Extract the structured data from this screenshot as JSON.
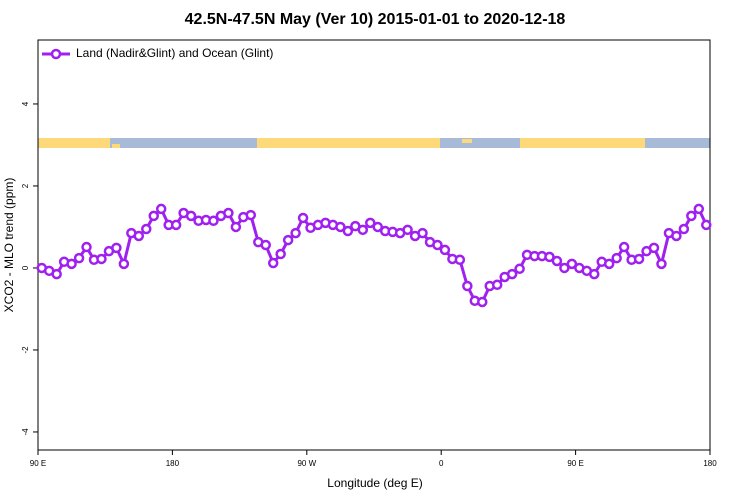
{
  "chart_data": {
    "type": "line",
    "title": "42.5N-47.5N May (Ver 10)   2015-01-01 to 2020-12-18",
    "x_label": "Longitude (deg E)",
    "y_label": "XCO2 - MLO trend (ppm)",
    "xlim": [
      90,
      540
    ],
    "ylim": [
      -4.44,
      5.56
    ],
    "xticks": [
      {
        "value": 90,
        "label": "90 E"
      },
      {
        "value": 180,
        "label": "180"
      },
      {
        "value": 270,
        "label": "90 W"
      },
      {
        "value": 360,
        "label": "0"
      },
      {
        "value": 450,
        "label": "90 E"
      },
      {
        "value": 540,
        "label": "180"
      }
    ],
    "yticks": [
      -4,
      -2,
      0,
      2,
      4
    ],
    "legend": "top-left",
    "x": [
      92.5,
      97.5,
      102.5,
      107.5,
      112.5,
      117.5,
      122.5,
      127.5,
      132.5,
      137.5,
      142.5,
      147.5,
      152.5,
      157.5,
      162.5,
      167.5,
      172.5,
      177.5,
      182.5,
      187.5,
      192.5,
      197.5,
      202.5,
      207.5,
      212.5,
      217.5,
      222.5,
      227.5,
      232.5,
      237.5,
      242.5,
      247.5,
      252.5,
      257.5,
      262.5,
      267.5,
      272.5,
      277.5,
      282.5,
      287.5,
      292.5,
      297.5,
      302.5,
      307.5,
      312.5,
      317.5,
      322.5,
      327.5,
      332.5,
      337.5,
      342.5,
      347.5,
      352.5,
      357.5,
      362.5,
      367.5,
      372.5,
      377.5,
      382.5,
      387.5,
      392.5,
      397.5,
      402.5,
      407.5,
      412.5,
      417.5,
      422.5,
      427.5,
      432.5,
      437.5,
      442.5,
      447.5,
      452.5,
      457.5,
      462.5,
      467.5,
      472.5,
      477.5,
      482.5,
      487.5,
      492.5,
      497.5,
      502.5,
      507.5,
      512.5,
      517.5,
      522.5,
      527.5,
      532.5,
      537.5
    ],
    "series": [
      {
        "name": "Land (Nadir&Glint) and Ocean (Glint)",
        "color": "#a020f0",
        "values": [
          0,
          -0.07,
          -0.15,
          0.15,
          0.1,
          0.24,
          0.51,
          0.2,
          0.22,
          0.41,
          0.49,
          0.1,
          0.85,
          0.78,
          0.95,
          1.27,
          1.44,
          1.05,
          1.05,
          1.34,
          1.27,
          1.15,
          1.17,
          1.15,
          1.27,
          1.34,
          1.0,
          1.24,
          1.29,
          0.63,
          0.56,
          0.12,
          0.34,
          0.68,
          0.85,
          1.22,
          0.98,
          1.05,
          1.1,
          1.05,
          1.0,
          0.9,
          1.02,
          0.93,
          1.1,
          1.0,
          0.9,
          0.88,
          0.85,
          0.93,
          0.78,
          0.85,
          0.63,
          0.56,
          0.44,
          0.22,
          0.2,
          -0.44,
          -0.8,
          -0.83,
          -0.44,
          -0.41,
          -0.22,
          -0.15,
          -0.02,
          0.32,
          0.29,
          0.29,
          0.27,
          0.17,
          0,
          0.1,
          0,
          -0.07,
          -0.15,
          0.15,
          0.1,
          0.24,
          0.51,
          0.2,
          0.22,
          0.41,
          0.49,
          0.1,
          0.85,
          0.78,
          0.95,
          1.27,
          1.44,
          1.05
        ]
      }
    ]
  }
}
